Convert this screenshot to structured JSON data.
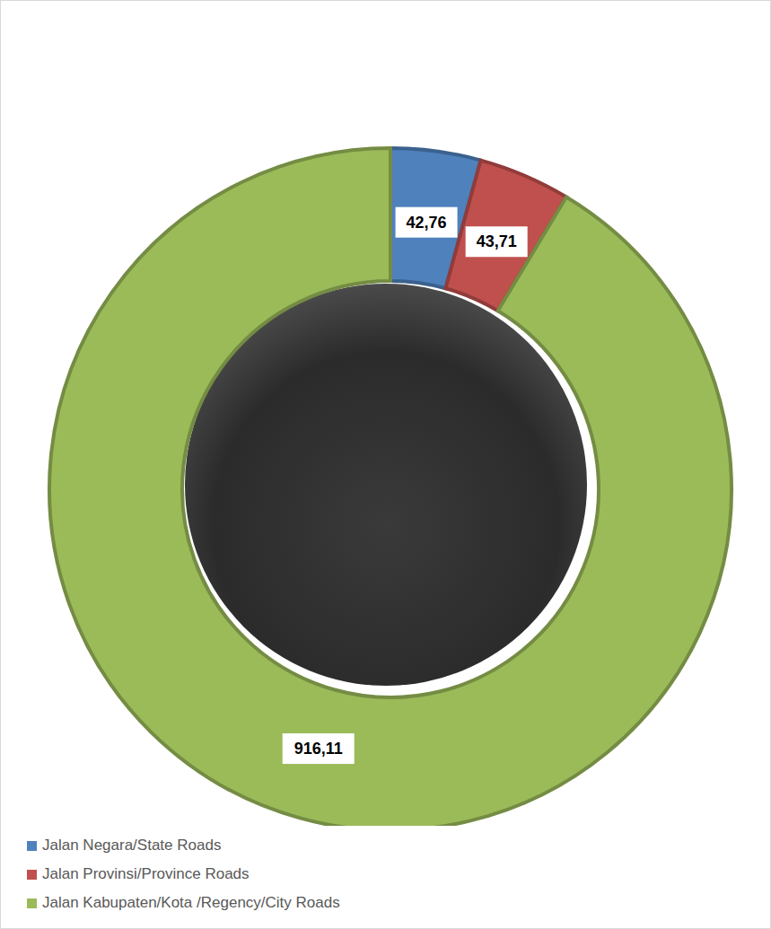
{
  "chart_data": {
    "type": "pie",
    "categories": [
      "Jalan Negara/State Roads",
      "Jalan Provinsi/Province Roads",
      "Jalan Kabupaten/Kota /Regency/City Roads"
    ],
    "values": [
      42.76,
      43.71,
      916.11
    ],
    "value_labels": [
      "42,76",
      "43,71",
      "916,11"
    ],
    "colors": [
      "#4f81bd",
      "#c0504d",
      "#9bbb59"
    ],
    "data_labels": true,
    "legend": "bottom-left"
  }
}
